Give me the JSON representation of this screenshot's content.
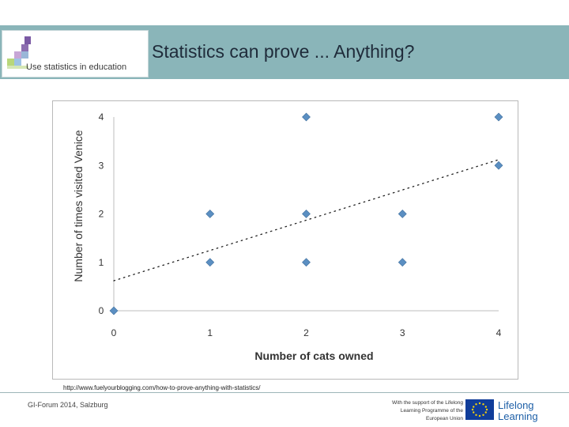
{
  "header": {
    "logo_text": "Use statistics in education",
    "title": "Statistics can prove ... Anything?",
    "accent_color": "#8ab5b9"
  },
  "chart_data": {
    "type": "scatter",
    "xlabel": "Number of cats owned",
    "ylabel": "Number of times visited Venice",
    "x_ticks": [
      "0",
      "1",
      "2",
      "3",
      "4"
    ],
    "y_ticks": [
      "0",
      "1",
      "2",
      "3",
      "4"
    ],
    "xlim": [
      0,
      4
    ],
    "ylim": [
      0,
      4
    ],
    "grid": false,
    "legend": "none",
    "marker_color": "#5b8fc2",
    "points": [
      {
        "x": 0,
        "y": 0
      },
      {
        "x": 1,
        "y": 1
      },
      {
        "x": 1,
        "y": 2
      },
      {
        "x": 2,
        "y": 1
      },
      {
        "x": 2,
        "y": 2
      },
      {
        "x": 2,
        "y": 4
      },
      {
        "x": 3,
        "y": 1
      },
      {
        "x": 3,
        "y": 2
      },
      {
        "x": 4,
        "y": 3
      },
      {
        "x": 4,
        "y": 4
      }
    ],
    "trendline": {
      "style": "dotted",
      "from": [
        0,
        0.62
      ],
      "to": [
        4,
        3.12
      ]
    }
  },
  "source_url": "http://www.fuelyourblogging.com/how-to-prove-anything-with-statistics/",
  "footer": {
    "event": "GI-Forum 2014, Salzburg",
    "support_lines": [
      "With the support of the Lifelong",
      "Learning Programme of the",
      "European Union"
    ],
    "lifelong_learning": "Lifelong\nLearning",
    "eu_blue": "#103d9a"
  }
}
